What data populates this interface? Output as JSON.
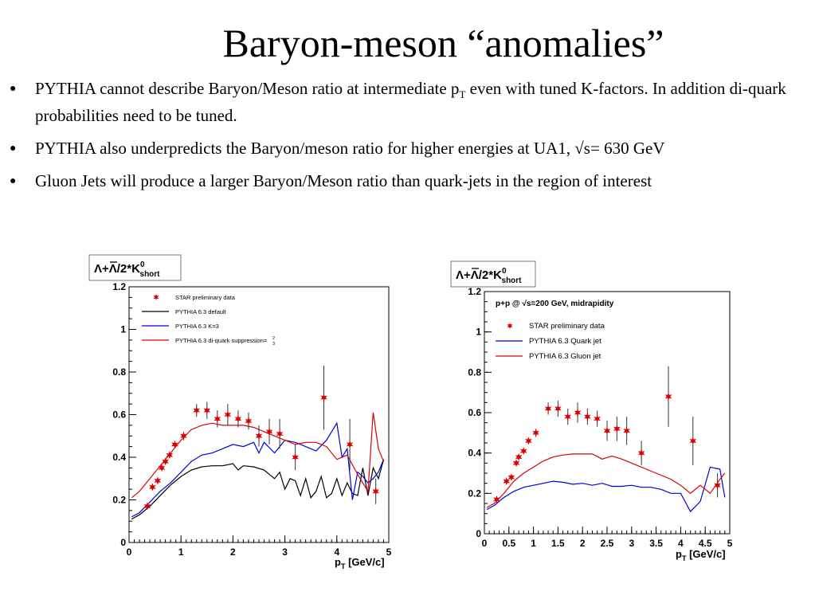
{
  "slide": {
    "title": "Baryon-meson “anomalies”",
    "bullets": [
      {
        "pre": "PYTHIA cannot describe Baryon/Meson ratio at intermediate p",
        "sub": "T",
        "post": " even with tuned K-factors. In addition di-quark probabilities need to be tuned."
      },
      {
        "pre": "PYTHIA also underpredicts the Baryon/meson ratio for higher energies at UA1, √s= 630 GeV",
        "sub": "",
        "post": ""
      },
      {
        "pre": "Gluon Jets will produce a larger Baryon/Meson ratio than quark-jets in the region of interest",
        "sub": "",
        "post": ""
      }
    ],
    "bullet_symbol": "●"
  },
  "chart_data": [
    {
      "type": "scatter",
      "title": "Λ+Λ̄/2*K⁰short",
      "title_parts": {
        "main": "Λ+Λ/2*K",
        "sup": "0",
        "sub": "short"
      },
      "xlabel": "p_T [GeV/c]",
      "xlabel_parts": {
        "pre": "p",
        "sub": "T",
        "post": " [GeV/c]"
      },
      "ylabel": "",
      "xlim": [
        0,
        5
      ],
      "ylim": [
        0,
        1.2
      ],
      "xticks": [
        0,
        1,
        2,
        3,
        4,
        5
      ],
      "xtick_labels": [
        "0",
        "1",
        "2",
        "3",
        "4",
        "5"
      ],
      "yticks": [
        0,
        0.2,
        0.4,
        0.6,
        0.8,
        1,
        1.2
      ],
      "ytick_labels": [
        "0",
        "0.2",
        "0.4",
        "0.6",
        "0.8",
        "1",
        "1.2"
      ],
      "legend": {
        "position": "top-left",
        "entries": [
          {
            "label": "STAR preliminary data",
            "kind": "marker",
            "color": "#dd0000"
          },
          {
            "label": "PYTHIA 6.3 default",
            "kind": "line",
            "color": "#000000"
          },
          {
            "label": "PYTHIA 6.3 K=3",
            "kind": "line",
            "color": "#0000dd"
          },
          {
            "label": "PYTHIA 6.3 di-quark suppression=",
            "frac_num": "2",
            "frac_den": "3",
            "kind": "line",
            "color": "#dd0000"
          }
        ]
      },
      "series": [
        {
          "name": "STAR preliminary data",
          "kind": "points",
          "color": "#dd0000",
          "x": [
            0.35,
            0.45,
            0.55,
            0.63,
            0.7,
            0.78,
            0.88,
            1.05,
            1.3,
            1.5,
            1.7,
            1.9,
            2.1,
            2.3,
            2.5,
            2.7,
            2.9,
            3.2,
            3.75,
            4.25,
            4.75
          ],
          "y": [
            0.17,
            0.26,
            0.29,
            0.35,
            0.38,
            0.41,
            0.46,
            0.5,
            0.62,
            0.62,
            0.58,
            0.6,
            0.58,
            0.57,
            0.5,
            0.52,
            0.51,
            0.4,
            0.68,
            0.46,
            0.24
          ],
          "err": [
            0.01,
            0.01,
            0.01,
            0.01,
            0.01,
            0.01,
            0.01,
            0.02,
            0.03,
            0.04,
            0.04,
            0.05,
            0.04,
            0.04,
            0.05,
            0.06,
            0.07,
            0.06,
            0.15,
            0.12,
            0.06
          ]
        },
        {
          "name": "PYTHIA 6.3 default",
          "kind": "line",
          "color": "#000000",
          "x": [
            0.05,
            0.2,
            0.4,
            0.6,
            0.8,
            1.0,
            1.2,
            1.4,
            1.6,
            1.8,
            2.0,
            2.1,
            2.2,
            2.4,
            2.6,
            2.7,
            2.8,
            2.9,
            3.0,
            3.1,
            3.2,
            3.3,
            3.4,
            3.5,
            3.6,
            3.7,
            3.8,
            3.9,
            4.0,
            4.1,
            4.2,
            4.3,
            4.4,
            4.5,
            4.6,
            4.7,
            4.8,
            4.9
          ],
          "y": [
            0.11,
            0.13,
            0.17,
            0.22,
            0.27,
            0.31,
            0.34,
            0.355,
            0.36,
            0.36,
            0.37,
            0.34,
            0.36,
            0.355,
            0.34,
            0.32,
            0.3,
            0.33,
            0.25,
            0.3,
            0.29,
            0.22,
            0.3,
            0.21,
            0.24,
            0.31,
            0.21,
            0.23,
            0.3,
            0.22,
            0.28,
            0.23,
            0.22,
            0.35,
            0.22,
            0.35,
            0.3,
            0.39
          ]
        },
        {
          "name": "PYTHIA 6.3 K=3",
          "kind": "line",
          "color": "#0000dd",
          "x": [
            0.05,
            0.2,
            0.4,
            0.6,
            0.8,
            1.0,
            1.2,
            1.4,
            1.6,
            1.8,
            2.0,
            2.2,
            2.4,
            2.5,
            2.6,
            2.8,
            3.0,
            3.2,
            3.4,
            3.6,
            3.8,
            4.0,
            4.1,
            4.2,
            4.3,
            4.4,
            4.5,
            4.6,
            4.7,
            4.8,
            4.9
          ],
          "y": [
            0.12,
            0.14,
            0.19,
            0.24,
            0.28,
            0.33,
            0.38,
            0.41,
            0.42,
            0.44,
            0.46,
            0.45,
            0.47,
            0.42,
            0.47,
            0.42,
            0.48,
            0.47,
            0.45,
            0.43,
            0.48,
            0.56,
            0.4,
            0.44,
            0.2,
            0.33,
            0.31,
            0.28,
            0.3,
            0.33,
            0.39
          ]
        },
        {
          "name": "PYTHIA 6.3 di-quark suppression=2/3",
          "kind": "line",
          "color": "#dd0000",
          "x": [
            0.05,
            0.2,
            0.4,
            0.6,
            0.8,
            1.0,
            1.2,
            1.4,
            1.6,
            1.8,
            2.0,
            2.2,
            2.4,
            2.6,
            2.8,
            3.0,
            3.2,
            3.4,
            3.6,
            3.8,
            4.0,
            4.2,
            4.4,
            4.6,
            4.7,
            4.8,
            4.9
          ],
          "y": [
            0.21,
            0.24,
            0.3,
            0.36,
            0.42,
            0.48,
            0.53,
            0.55,
            0.56,
            0.55,
            0.55,
            0.55,
            0.54,
            0.52,
            0.5,
            0.48,
            0.46,
            0.47,
            0.47,
            0.45,
            0.39,
            0.41,
            0.32,
            0.24,
            0.61,
            0.44,
            0.38
          ]
        }
      ]
    },
    {
      "type": "scatter",
      "title": "Λ+Λ̄/2*K⁰short",
      "title_parts": {
        "main": "Λ+Λ/2*K",
        "sup": "0",
        "sub": "short"
      },
      "xlabel": "p_T [GeV/c]",
      "xlabel_parts": {
        "pre": "p",
        "sub": "T",
        "post": " [GeV/c]"
      },
      "ylabel": "",
      "annotation": "p+p @ √s=200 GeV, midrapidity",
      "xlim": [
        0,
        5
      ],
      "ylim": [
        0,
        1.2
      ],
      "xticks": [
        0,
        0.5,
        1,
        1.5,
        2,
        2.5,
        3,
        3.5,
        4,
        4.5,
        5
      ],
      "xtick_labels": [
        "0",
        "0.5",
        "1",
        "1.5",
        "2",
        "2.5",
        "3",
        "3.5",
        "4",
        "4.5",
        "5"
      ],
      "yticks": [
        0,
        0.2,
        0.4,
        0.6,
        0.8,
        1,
        1.2
      ],
      "ytick_labels": [
        "0",
        "0.2",
        "0.4",
        "0.6",
        "0.8",
        "1",
        "1.2"
      ],
      "legend": {
        "position": "top-left",
        "entries": [
          {
            "label": "STAR preliminary data",
            "kind": "marker",
            "color": "#dd0000"
          },
          {
            "label": "PYTHIA 6.3 Quark jet",
            "kind": "line",
            "color": "#0000dd"
          },
          {
            "label": "PYTHIA 6.3 Gluon jet",
            "kind": "line",
            "color": "#dd0000"
          }
        ]
      },
      "series": [
        {
          "name": "STAR preliminary data",
          "kind": "points",
          "color": "#dd0000",
          "x": [
            0.25,
            0.45,
            0.55,
            0.65,
            0.7,
            0.8,
            0.9,
            1.05,
            1.3,
            1.5,
            1.7,
            1.9,
            2.1,
            2.3,
            2.5,
            2.7,
            2.9,
            3.2,
            3.75,
            4.25,
            4.75
          ],
          "y": [
            0.17,
            0.26,
            0.28,
            0.35,
            0.38,
            0.41,
            0.46,
            0.5,
            0.62,
            0.62,
            0.58,
            0.6,
            0.58,
            0.57,
            0.51,
            0.52,
            0.51,
            0.4,
            0.68,
            0.46,
            0.24
          ],
          "err": [
            0.01,
            0.01,
            0.01,
            0.01,
            0.01,
            0.01,
            0.01,
            0.02,
            0.03,
            0.04,
            0.04,
            0.05,
            0.04,
            0.04,
            0.05,
            0.06,
            0.07,
            0.06,
            0.15,
            0.12,
            0.06
          ]
        },
        {
          "name": "PYTHIA 6.3 Quark jet",
          "kind": "line",
          "color": "#0000dd",
          "x": [
            0.05,
            0.2,
            0.4,
            0.6,
            0.8,
            1.0,
            1.2,
            1.4,
            1.6,
            1.8,
            2.0,
            2.2,
            2.4,
            2.6,
            2.8,
            3.0,
            3.2,
            3.4,
            3.6,
            3.8,
            4.0,
            4.2,
            4.4,
            4.6,
            4.8,
            4.9
          ],
          "y": [
            0.12,
            0.14,
            0.18,
            0.21,
            0.23,
            0.24,
            0.25,
            0.26,
            0.255,
            0.245,
            0.25,
            0.24,
            0.25,
            0.235,
            0.235,
            0.24,
            0.23,
            0.23,
            0.22,
            0.2,
            0.2,
            0.11,
            0.16,
            0.33,
            0.32,
            0.18
          ]
        },
        {
          "name": "PYTHIA 6.3 Gluon jet",
          "kind": "line",
          "color": "#dd0000",
          "x": [
            0.05,
            0.2,
            0.4,
            0.6,
            0.8,
            1.0,
            1.2,
            1.4,
            1.6,
            1.8,
            2.0,
            2.2,
            2.4,
            2.6,
            2.8,
            3.0,
            3.2,
            3.4,
            3.6,
            3.8,
            4.0,
            4.2,
            4.4,
            4.6,
            4.8,
            4.9
          ],
          "y": [
            0.13,
            0.15,
            0.2,
            0.26,
            0.3,
            0.33,
            0.36,
            0.38,
            0.39,
            0.395,
            0.395,
            0.395,
            0.37,
            0.385,
            0.37,
            0.35,
            0.33,
            0.31,
            0.29,
            0.27,
            0.24,
            0.2,
            0.24,
            0.2,
            0.27,
            0.3
          ]
        }
      ]
    }
  ]
}
